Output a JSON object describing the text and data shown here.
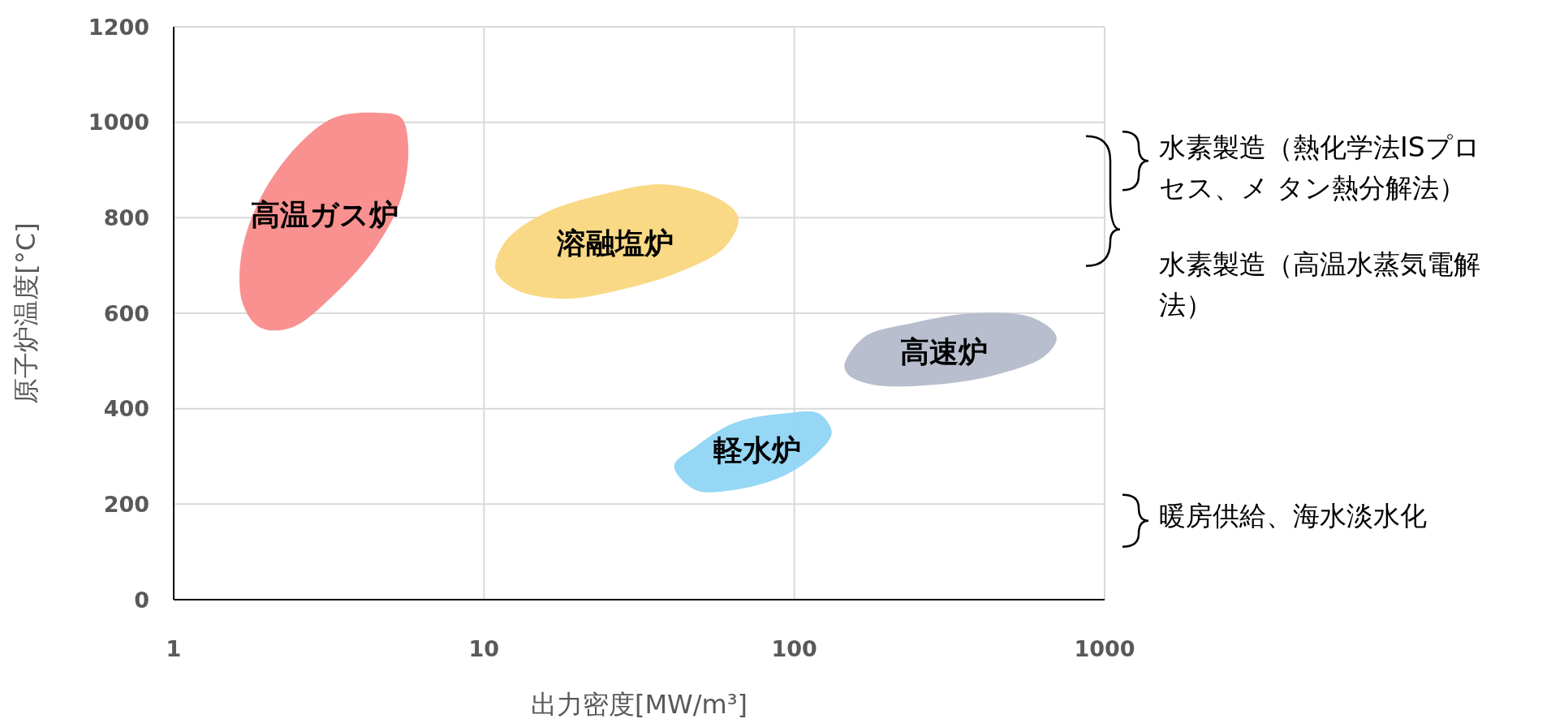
{
  "chart_data": {
    "type": "area",
    "xlabel": "出力密度[MW/m³]",
    "ylabel": "原子炉温度[°C]",
    "log": "x",
    "xlim": [
      1,
      1000
    ],
    "xticks": [
      1,
      10,
      100,
      1000
    ],
    "ylim": [
      0,
      1200
    ],
    "yticks": [
      0,
      200,
      400,
      600,
      800,
      1000,
      1200
    ],
    "grid": true,
    "series": [
      {
        "name": "高温ガス炉",
        "color": "#f98b8b",
        "x": [
          4.5,
          5.4,
          5.7,
          5.4,
          4.5,
          3.3,
          2.4,
          1.9,
          1.67,
          1.65,
          1.9,
          2.5,
          3.3
        ],
        "values": [
          1020,
          1010,
          950,
          840,
          740,
          640,
          570,
          570,
          620,
          720,
          840,
          950,
          1010
        ]
      },
      {
        "name": "溶融塩炉",
        "color": "#f9d77e",
        "x": [
          10.9,
          11.7,
          15.7,
          24.5,
          38,
          57,
          66,
          60,
          44,
          28,
          18,
          12.6
        ],
        "values": [
          690,
          750,
          810,
          850,
          870,
          840,
          800,
          740,
          690,
          650,
          630,
          650
        ]
      },
      {
        "name": "高速炉",
        "color": "#b5bacb",
        "x": [
          145,
          168,
          243,
          380,
          590,
          700,
          640,
          440,
          280,
          180,
          150
        ],
        "values": [
          490,
          550,
          580,
          600,
          590,
          550,
          510,
          470,
          450,
          450,
          470
        ]
      },
      {
        "name": "軽水炉",
        "color": "#8fd5f4",
        "x": [
          41,
          48,
          64,
          93,
          120,
          132,
          120,
          93,
          64,
          48
        ],
        "values": [
          280,
          320,
          370,
          390,
          390,
          350,
          310,
          260,
          230,
          230
        ]
      }
    ],
    "annotations": [
      "水素製造（熱化学法ISプロセス、メ タン熱分解法）",
      "水素製造（高温水蒸気電解法）",
      "暖房供給、海水淡水化"
    ]
  }
}
